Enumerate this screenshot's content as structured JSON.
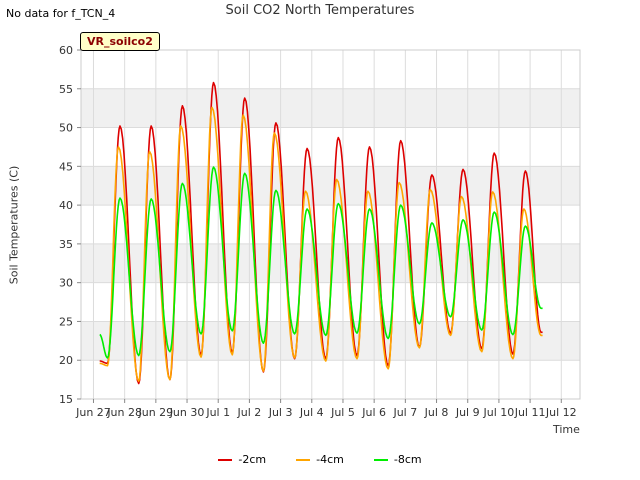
{
  "note": "No data for f_TCN_4",
  "badge": "VR_soilco2",
  "chart_data": {
    "type": "line",
    "title": "Soil CO2 North Temperatures",
    "xlabel": "Time",
    "ylabel": "Soil Temperatures (C)",
    "xlim": [
      0,
      16
    ],
    "ylim": [
      15,
      60
    ],
    "yticks": [
      15,
      20,
      25,
      30,
      35,
      40,
      45,
      50,
      55,
      60
    ],
    "xtick_labels": [
      "Jun 27",
      "Jun 28",
      "Jun 29",
      "Jun 30",
      "Jul 1",
      "Jul 2",
      "Jul 3",
      "Jul 4",
      "Jul 5",
      "Jul 6",
      "Jul 7",
      "Jul 8",
      "Jul 9",
      "Jul 10",
      "Jul 11",
      "Jul 12"
    ],
    "xtick_positions": [
      0.4,
      1.4,
      2.4,
      3.4,
      4.4,
      5.4,
      6.4,
      7.4,
      8.4,
      9.4,
      10.4,
      11.4,
      12.4,
      13.4,
      14.4,
      15.4
    ],
    "grid": true,
    "legend_position": "bottom",
    "series": [
      {
        "name": "-2cm",
        "color": "#dd0000",
        "start": 0.6,
        "end": 14.8,
        "peak_x": [
          1.25,
          2.25,
          3.25,
          4.25,
          5.25,
          6.25,
          7.25,
          8.25,
          9.25,
          10.25,
          11.25,
          12.25,
          13.25,
          14.25
        ],
        "peak_y": [
          50.2,
          50.2,
          52.8,
          55.8,
          53.8,
          50.6,
          47.3,
          48.7,
          47.5,
          48.3,
          43.9,
          44.6,
          46.7,
          44.4
        ],
        "trough_x": [
          0.85,
          1.85,
          2.85,
          3.85,
          4.85,
          5.85,
          6.85,
          7.85,
          8.85,
          9.85,
          10.85,
          11.85,
          12.85,
          13.85,
          14.75
        ],
        "trough_y": [
          19.6,
          17.0,
          17.5,
          20.7,
          21.0,
          18.5,
          20.2,
          20.2,
          20.6,
          19.3,
          21.7,
          23.5,
          21.5,
          20.8,
          23.6
        ]
      },
      {
        "name": "-4cm",
        "color": "#ffa500",
        "start": 0.6,
        "end": 14.8,
        "peak_x": [
          1.2,
          2.2,
          3.2,
          4.2,
          5.2,
          6.2,
          7.2,
          8.2,
          9.2,
          10.2,
          11.2,
          12.2,
          13.2,
          14.2
        ],
        "peak_y": [
          47.5,
          46.9,
          50.2,
          52.6,
          51.6,
          49.3,
          41.8,
          43.3,
          41.8,
          42.9,
          42.0,
          41.1,
          41.7,
          39.5
        ],
        "trough_x": [
          0.85,
          1.85,
          2.85,
          3.85,
          4.85,
          5.85,
          6.85,
          7.85,
          8.85,
          9.85,
          10.85,
          11.85,
          12.85,
          13.85,
          14.75
        ],
        "trough_y": [
          19.3,
          17.3,
          17.5,
          20.4,
          20.7,
          18.6,
          20.3,
          19.9,
          20.2,
          18.9,
          21.6,
          23.2,
          21.1,
          20.2,
          23.2
        ]
      },
      {
        "name": "-8cm",
        "color": "#00ee00",
        "start": 0.6,
        "end": 14.8,
        "peak_x": [
          1.25,
          2.25,
          3.25,
          4.25,
          5.25,
          6.25,
          7.25,
          8.25,
          9.25,
          10.25,
          11.25,
          12.25,
          13.25,
          14.25
        ],
        "peak_y": [
          40.9,
          40.8,
          42.8,
          44.9,
          44.1,
          41.9,
          39.5,
          40.2,
          39.5,
          40.0,
          37.7,
          38.1,
          39.1,
          37.3
        ],
        "trough_x": [
          0.85,
          1.85,
          2.85,
          3.85,
          4.85,
          5.85,
          6.85,
          7.85,
          8.85,
          9.85,
          10.85,
          11.85,
          12.85,
          13.85,
          14.75
        ],
        "trough_y": [
          20.3,
          20.6,
          21.1,
          23.4,
          23.8,
          22.2,
          23.4,
          23.2,
          23.5,
          22.8,
          24.7,
          25.6,
          23.9,
          23.3,
          26.7
        ]
      }
    ]
  }
}
